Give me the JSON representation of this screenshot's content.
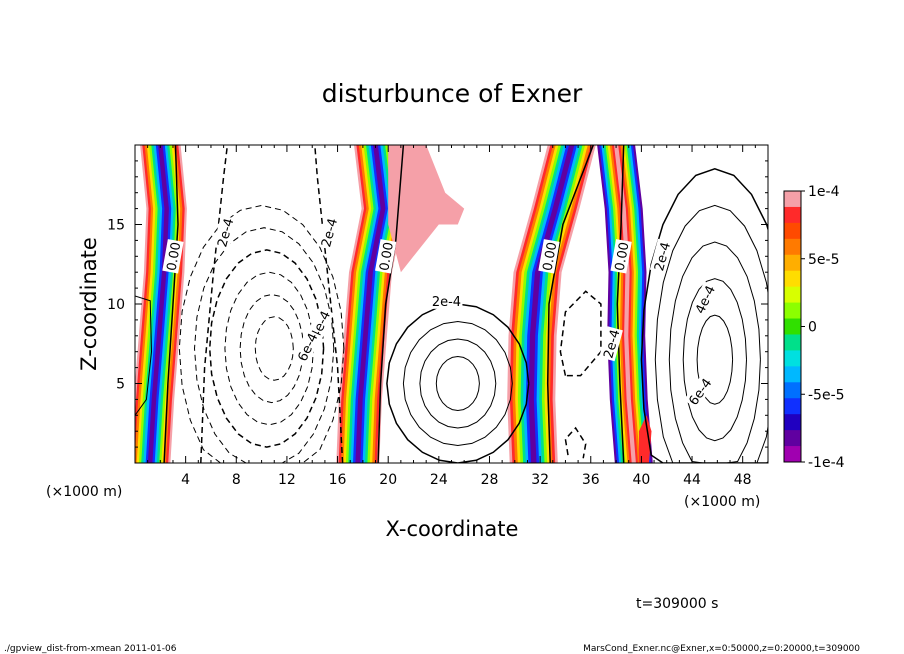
{
  "chart_data": {
    "type": "heatmap",
    "title": "disturbunce of Exner",
    "xlabel": "X-coordinate",
    "ylabel": "Z-coordinate",
    "x_unit": "(×1000 m)",
    "z_unit": "(×1000 m)",
    "xlim": [
      0,
      50
    ],
    "zlim": [
      0,
      20
    ],
    "x_ticks": [
      4,
      8,
      12,
      16,
      20,
      24,
      28,
      32,
      36,
      40,
      44,
      48
    ],
    "z_ticks": [
      5,
      10,
      15
    ],
    "colorbar": {
      "range": [
        -0.0001,
        0.0001
      ],
      "tick_labels": [
        "1e-4",
        "5e-5",
        "0",
        "-5e-5",
        "-1e-4"
      ],
      "tick_values": [
        0.0001,
        5e-05,
        0,
        -5e-05,
        -0.0001
      ],
      "colors": [
        "#f5a0a8",
        "#ff2a2a",
        "#ff4a00",
        "#ff7a00",
        "#ffae00",
        "#ffdd00",
        "#d8ff00",
        "#8cff00",
        "#30e000",
        "#00e08a",
        "#00e0e0",
        "#00b8ff",
        "#0070ff",
        "#1030ff",
        "#2000c0",
        "#6000a0",
        "#a000b0"
      ]
    },
    "contour_labels": [
      "0.00",
      "0.00",
      "0.00",
      "0.00",
      "2e-4",
      "2e-4",
      "2e-4",
      "2e-4",
      "2e-4",
      "4e-4",
      "6e-4",
      "4e-4",
      "6e-4"
    ],
    "time_label": "t=309000 s"
  },
  "footer": {
    "left": "./gpview_dist-from-xmean  2011-01-06",
    "right": "MarsCond_Exner.nc@Exner,x=0:50000,z=0:20000,t=309000"
  }
}
